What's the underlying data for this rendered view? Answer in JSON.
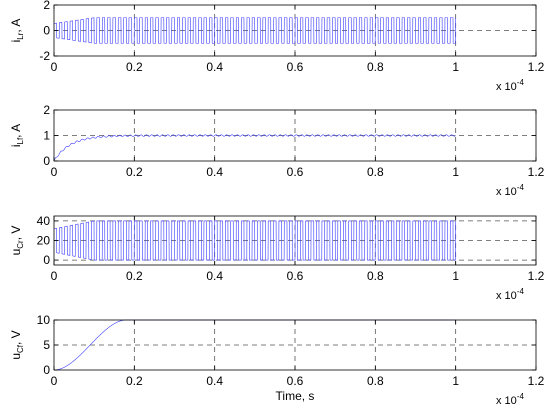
{
  "chart_data": [
    {
      "type": "line",
      "ylabel": {
        "main": "i",
        "sub": "Lr",
        "unit": ", A"
      },
      "xlim": [
        0,
        1.2
      ],
      "ylim": [
        -2,
        2
      ],
      "xticks": [
        "0",
        "0.2",
        "0.4",
        "0.6",
        "0.8",
        "1",
        "1.2"
      ],
      "yticks": [
        "-2",
        "0",
        "2"
      ],
      "x_multiplier": {
        "base": "x 10",
        "exp": "-4"
      },
      "grid": "dashed",
      "series": [
        {
          "color": "#3b3bff",
          "waveform": "square-ac",
          "x_start": 0,
          "x_end": 1.0,
          "amplitude": 1.0,
          "offset": 0,
          "cycles": 75
        }
      ]
    },
    {
      "type": "line",
      "ylabel": {
        "main": "i",
        "sub": "Lf",
        "unit": ", A"
      },
      "xlim": [
        0,
        1.2
      ],
      "ylim": [
        0,
        2
      ],
      "xticks": [
        "0",
        "0.2",
        "0.4",
        "0.6",
        "0.8",
        "1",
        "1.2"
      ],
      "yticks": [
        "0",
        "1",
        "2"
      ],
      "x_multiplier": {
        "base": "x 10",
        "exp": "-4"
      },
      "grid": "dashed",
      "series": [
        {
          "color": "#3b3bff",
          "waveform": "rise-with-ripple",
          "x_start": 0,
          "x_end": 1.0,
          "final": 1.0,
          "tau": 0.04,
          "ripple": 0.03,
          "cycles": 75
        }
      ]
    },
    {
      "type": "line",
      "ylabel": {
        "main": "u",
        "sub": "Cr",
        "unit": ", V"
      },
      "xlim": [
        0,
        1.2
      ],
      "ylim": [
        -5,
        45
      ],
      "xticks": [
        "0",
        "0.2",
        "0.4",
        "0.6",
        "0.8",
        "1",
        "1.2"
      ],
      "yticks": [
        "0",
        "20",
        "40"
      ],
      "x_multiplier": {
        "base": "x 10",
        "exp": "-4"
      },
      "grid": "dashed",
      "series": [
        {
          "color": "#3b3bff",
          "waveform": "square-dc",
          "x_start": 0,
          "x_end": 1.0,
          "low": 0,
          "high": 40,
          "cycles": 75
        }
      ]
    },
    {
      "type": "line",
      "ylabel": {
        "main": "u",
        "sub": "Cf",
        "unit": ", V"
      },
      "xlabel": "Time, s",
      "xlim": [
        0,
        1.2
      ],
      "ylim": [
        0,
        10
      ],
      "xticks": [
        "0",
        "0.2",
        "0.4",
        "0.6",
        "0.8",
        "1",
        "1.2"
      ],
      "yticks": [
        "0",
        "5",
        "10"
      ],
      "x_multiplier": {
        "base": "x 10",
        "exp": "-4"
      },
      "grid": "dashed",
      "series": [
        {
          "color": "#3b3bff",
          "waveform": "s-rise",
          "x_start": 0,
          "x_end": 1.0,
          "final": 10,
          "rise_end": 0.18
        }
      ]
    }
  ]
}
